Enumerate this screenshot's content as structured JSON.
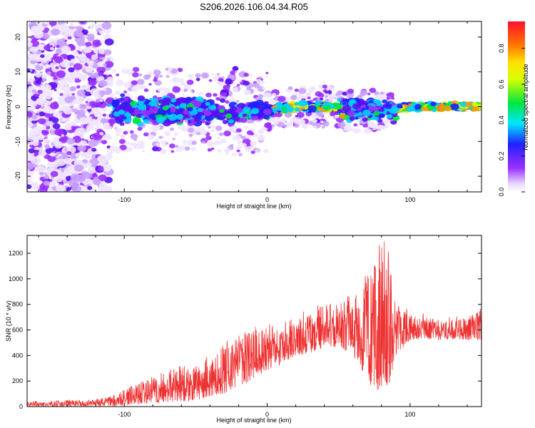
{
  "figure_title": "S206.2026.106.04.34.R05",
  "chart_data": [
    {
      "type": "heatmap",
      "title": "S206.2026.106.04.34.R05",
      "xlabel": "Height of straight line (km)",
      "ylabel": "Frequency (Hz)",
      "xlim": [
        -168,
        150
      ],
      "ylim": [
        -24.5,
        24.5
      ],
      "xticks": [
        -100,
        0,
        100
      ],
      "xtick_labels": [
        "-100",
        "0",
        "100"
      ],
      "yticks": [
        -20,
        -10,
        0,
        10,
        20
      ],
      "ytick_labels": [
        "-20",
        "-10",
        "0",
        "10",
        "20"
      ],
      "grid": false,
      "colormap": "rainbow (white → purple → blue → cyan → green → yellow → orange → red)",
      "ridge": [
        {
          "x": -100,
          "y": -1
        },
        {
          "x": -60,
          "y": -1
        },
        {
          "x": -20,
          "y": -2
        },
        {
          "x": 0,
          "y": -1
        },
        {
          "x": 20,
          "y": 0
        },
        {
          "x": 40,
          "y": 0
        },
        {
          "x": 60,
          "y": -1
        },
        {
          "x": 80,
          "y": -1
        },
        {
          "x": 100,
          "y": 0
        },
        {
          "x": 150,
          "y": 0
        }
      ],
      "colorbar": {
        "label": "Normalized spectral amplitude",
        "range": [
          0,
          0.95
        ],
        "ticks": [
          0.0,
          0.2,
          0.4,
          0.6,
          0.8
        ],
        "tick_labels": [
          "0.0",
          "0.2",
          "0.4",
          "0.6",
          "0.8"
        ]
      }
    },
    {
      "type": "line",
      "title": "",
      "xlabel": "Height of straight line (km)",
      "ylabel": "SNR (10 * v/v)",
      "xlim": [
        -168,
        150
      ],
      "ylim": [
        0,
        1340
      ],
      "xticks": [
        -100,
        0,
        100
      ],
      "xtick_labels": [
        "-100",
        "0",
        "100"
      ],
      "yticks": [
        0,
        200,
        400,
        600,
        800,
        1000,
        1200
      ],
      "ytick_labels": [
        "0",
        "200",
        "400",
        "600",
        "800",
        "1000",
        "1200"
      ],
      "grid": false,
      "color": "#ee3333",
      "series": [
        {
          "name": "SNR",
          "x": [
            -168,
            -140,
            -120,
            -110,
            -100,
            -90,
            -80,
            -70,
            -60,
            -50,
            -40,
            -30,
            -20,
            -10,
            0,
            10,
            20,
            30,
            40,
            50,
            60,
            70,
            75,
            80,
            85,
            90,
            100,
            110,
            120,
            130,
            140,
            150
          ],
          "low": [
            2,
            2,
            3,
            5,
            10,
            15,
            25,
            30,
            40,
            50,
            80,
            100,
            150,
            200,
            280,
            330,
            400,
            420,
            460,
            470,
            400,
            200,
            120,
            100,
            150,
            400,
            520,
            530,
            520,
            530,
            520,
            520
          ],
          "high": [
            40,
            50,
            60,
            80,
            130,
            180,
            230,
            270,
            330,
            300,
            400,
            480,
            560,
            600,
            620,
            650,
            700,
            720,
            800,
            850,
            820,
            1000,
            1150,
            1300,
            1180,
            800,
            720,
            700,
            680,
            680,
            700,
            760
          ]
        }
      ]
    }
  ]
}
